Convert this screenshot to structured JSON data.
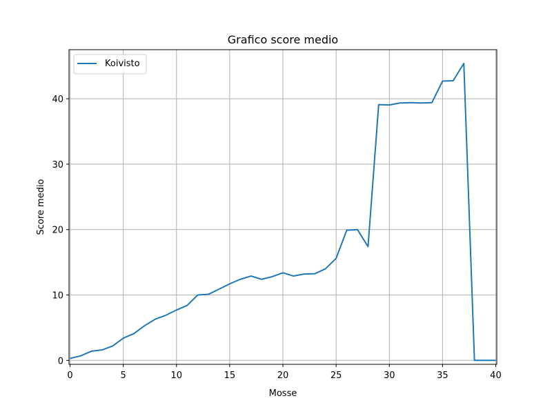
{
  "chart_data": {
    "type": "line",
    "title": "Grafico score medio",
    "xlabel": "Mosse",
    "ylabel": "Score medio",
    "xlim": [
      -0.1,
      40.1
    ],
    "ylim": [
      -0.6,
      47.5
    ],
    "xticks": [
      0,
      5,
      10,
      15,
      20,
      25,
      30,
      35,
      40
    ],
    "yticks": [
      0,
      10,
      20,
      30,
      40
    ],
    "grid": true,
    "legend_position": "upper-left",
    "series": [
      {
        "name": "Koivisto",
        "color": "#1f77b4",
        "x": [
          0,
          1,
          2,
          3,
          4,
          5,
          6,
          7,
          8,
          9,
          10,
          11,
          12,
          13,
          14,
          15,
          16,
          17,
          18,
          19,
          20,
          21,
          22,
          23,
          24,
          25,
          26,
          27,
          28,
          29,
          30,
          31,
          32,
          33,
          34,
          35,
          36,
          37,
          38,
          39,
          40
        ],
        "y": [
          0.3,
          0.7,
          1.4,
          1.6,
          2.2,
          3.4,
          4.1,
          5.3,
          6.3,
          6.9,
          7.7,
          8.4,
          10.0,
          10.1,
          10.9,
          11.7,
          12.4,
          12.9,
          12.4,
          12.8,
          13.4,
          12.9,
          13.2,
          13.25,
          14.0,
          15.6,
          19.9,
          20.0,
          17.4,
          39.1,
          39.05,
          39.35,
          39.4,
          39.35,
          39.4,
          42.7,
          42.75,
          45.4,
          0.0,
          0.0,
          0.0
        ]
      }
    ]
  }
}
